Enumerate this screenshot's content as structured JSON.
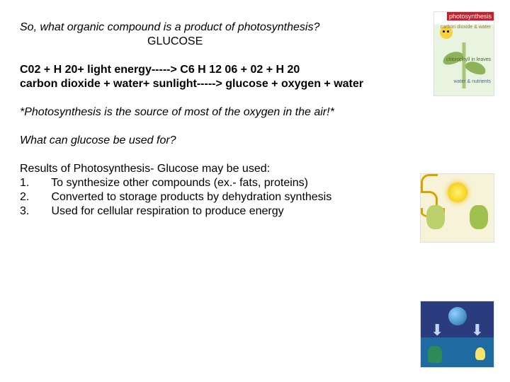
{
  "q1": "So, what organic compound is a product of photosynthesis?",
  "glucose": "GLUCOSE",
  "eq_chem": "C02 + H 20+ light energy-----> C6 H 12 06 + 02 + H 20",
  "eq_words": "carbon dioxide + water+ sunlight-----> glucose + oxygen + water",
  "note": "*Photosynthesis is the source of most of the oxygen in the air!*",
  "q2": "What can glucose be used for?",
  "results_head": "Results of Photosynthesis- Glucose may be used:",
  "results": [
    {
      "n": "1.",
      "t": "To synthesize other compounds (ex.- fats, proteins)"
    },
    {
      "n": "2.",
      "t": "Converted to storage products by dehydration synthesis"
    },
    {
      "n": "3.",
      "t": "Used for cellular respiration to produce energy"
    }
  ],
  "img1": {
    "banner": "photosynthesis",
    "top": "carbon\ndioxide\n& water",
    "mid": "chlorophyll\nin leaves",
    "bot": "water &\nnutrients"
  }
}
